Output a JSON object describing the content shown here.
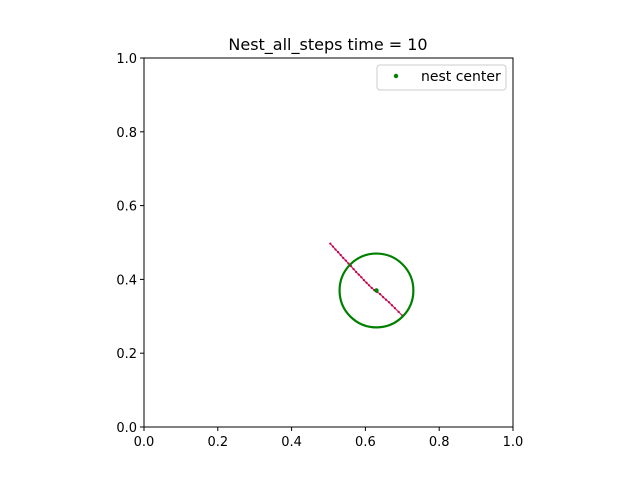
{
  "chart_data": {
    "type": "scatter",
    "title": "Nest_all_steps time = 10",
    "xlabel": "",
    "ylabel": "",
    "xlim": [
      0.0,
      1.0
    ],
    "ylim": [
      0.0,
      1.0
    ],
    "x_ticks": [
      "0.0",
      "0.2",
      "0.4",
      "0.6",
      "0.8",
      "1.0"
    ],
    "y_ticks": [
      "0.0",
      "0.2",
      "0.4",
      "0.6",
      "0.8",
      "1.0"
    ],
    "grid": false,
    "legend_position": "top-right",
    "nest_center": {
      "name": "nest center",
      "x": 0.63,
      "y": 0.37,
      "color": "#008000"
    },
    "nest_radius": 0.1,
    "circle_color": "#008000",
    "steps_color": "#c0004a",
    "step_points": [
      [
        0.505,
        0.497
      ],
      [
        0.512,
        0.489
      ],
      [
        0.519,
        0.481
      ],
      [
        0.526,
        0.474
      ],
      [
        0.533,
        0.466
      ],
      [
        0.54,
        0.458
      ],
      [
        0.547,
        0.451
      ],
      [
        0.554,
        0.443
      ],
      [
        0.561,
        0.436
      ],
      [
        0.568,
        0.428
      ],
      [
        0.575,
        0.42
      ],
      [
        0.582,
        0.413
      ],
      [
        0.589,
        0.406
      ],
      [
        0.596,
        0.398
      ],
      [
        0.603,
        0.391
      ],
      [
        0.61,
        0.384
      ],
      [
        0.617,
        0.377
      ],
      [
        0.624,
        0.371
      ],
      [
        0.632,
        0.366
      ],
      [
        0.64,
        0.36
      ],
      [
        0.648,
        0.352
      ],
      [
        0.656,
        0.345
      ],
      [
        0.664,
        0.338
      ],
      [
        0.672,
        0.33
      ],
      [
        0.68,
        0.322
      ],
      [
        0.69,
        0.312
      ],
      [
        0.7,
        0.302
      ]
    ]
  }
}
